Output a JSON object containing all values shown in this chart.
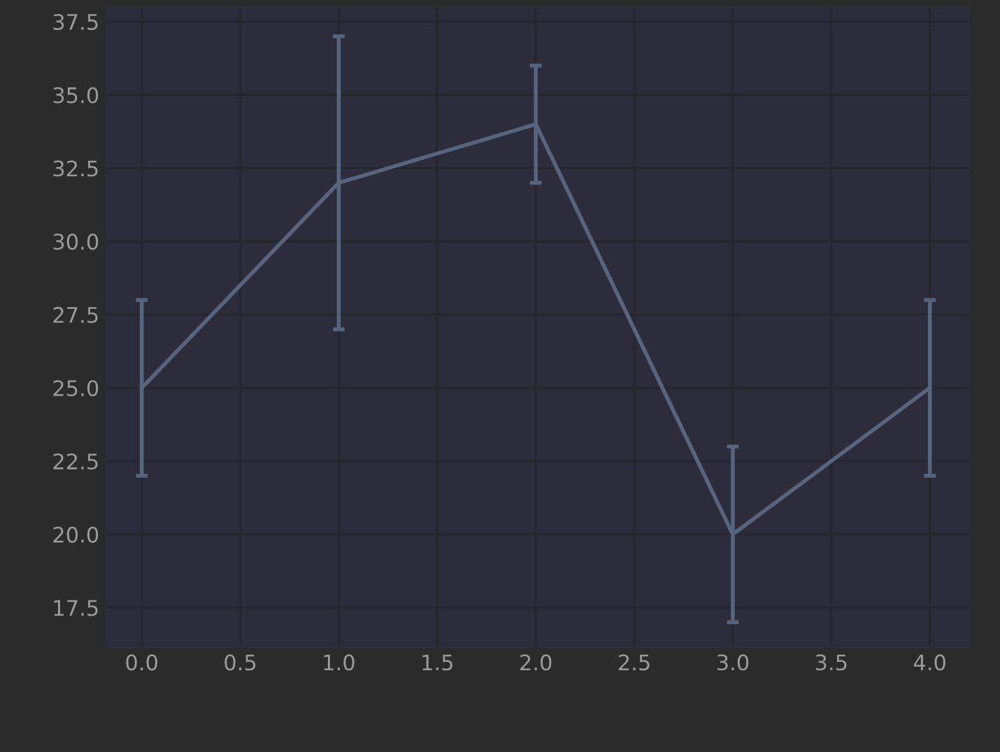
{
  "chart_data": {
    "type": "line",
    "x": [
      0,
      1,
      2,
      3,
      4
    ],
    "series": [
      {
        "color": "#56647e",
        "values": [
          25,
          32,
          34,
          20,
          25
        ],
        "errors": [
          3,
          5,
          2,
          3,
          3
        ]
      }
    ],
    "xlim": [
      -0.18,
      4.2
    ],
    "xticks": [
      {
        "value": 0,
        "label": "0.0"
      },
      {
        "value": 0.5,
        "label": "0.5"
      },
      {
        "value": 1,
        "label": "1.0"
      },
      {
        "value": 1.5,
        "label": "1.5"
      },
      {
        "value": 2,
        "label": "2.0"
      },
      {
        "value": 2.5,
        "label": "2.5"
      },
      {
        "value": 3,
        "label": "3.0"
      },
      {
        "value": 3.5,
        "label": "3.5"
      },
      {
        "value": 4,
        "label": "4.0"
      }
    ],
    "ylim": [
      16.15,
      38.0
    ],
    "yticks": [
      17.5,
      {
        "value": 20,
        "label": "20.0"
      },
      22.5,
      {
        "value": 25,
        "label": "25.0"
      },
      27.5,
      {
        "value": 30,
        "label": "30.0"
      },
      32.5,
      {
        "value": 35,
        "label": "35.0"
      },
      37.5
    ],
    "grid": true,
    "marker": "none",
    "line_style": "solid",
    "legend": false
  }
}
